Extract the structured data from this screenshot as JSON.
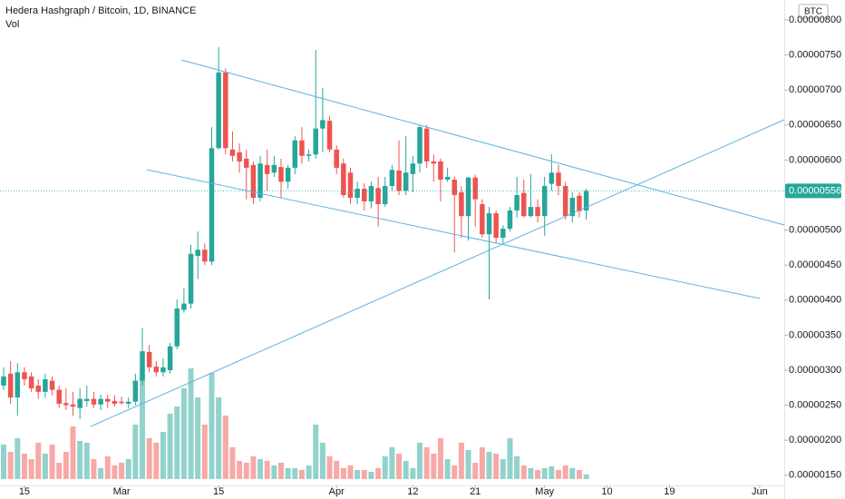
{
  "chart_data": {
    "type": "candlestick",
    "title": "Hedera Hashgraph / Bitcoin, 1D, BINANCE",
    "volume_label": "Vol",
    "currency": "BTC",
    "up_color": "#26a69a",
    "down_color": "#ef5350",
    "x": [
      "Feb 12",
      "Feb 13",
      "Feb 14",
      "Feb 15",
      "Feb 16",
      "Feb 17",
      "Feb 18",
      "Feb 19",
      "Feb 20",
      "Feb 21",
      "Feb 22",
      "Feb 23",
      "Feb 24",
      "Feb 25",
      "Feb 26",
      "Feb 27",
      "Feb 28",
      "Mar 1",
      "Mar 2",
      "Mar 3",
      "Mar 4",
      "Mar 5",
      "Mar 6",
      "Mar 7",
      "Mar 8",
      "Mar 9",
      "Mar 10",
      "Mar 11",
      "Mar 12",
      "Mar 13",
      "Mar 14",
      "Mar 15",
      "Mar 16",
      "Mar 17",
      "Mar 18",
      "Mar 19",
      "Mar 20",
      "Mar 21",
      "Mar 22",
      "Mar 23",
      "Mar 24",
      "Mar 25",
      "Mar 26",
      "Mar 27",
      "Mar 28",
      "Mar 29",
      "Mar 30",
      "Mar 31",
      "Apr 1",
      "Apr 2",
      "Apr 3",
      "Apr 4",
      "Apr 5",
      "Apr 6",
      "Apr 7",
      "Apr 8",
      "Apr 9",
      "Apr 10",
      "Apr 11",
      "Apr 12",
      "Apr 13",
      "Apr 14",
      "Apr 15",
      "Apr 16",
      "Apr 17",
      "Apr 18",
      "Apr 19",
      "Apr 20",
      "Apr 21",
      "Apr 22",
      "Apr 23",
      "Apr 24",
      "Apr 25",
      "Apr 26",
      "Apr 27",
      "Apr 28",
      "Apr 29",
      "Apr 30",
      "May 1",
      "May 2",
      "May 3",
      "May 4",
      "May 5",
      "May 6",
      "May 7"
    ],
    "open": [
      2.78e-06,
      2.95e-06,
      2.61e-06,
      2.97e-06,
      2.91e-06,
      2.78e-06,
      2.69e-06,
      2.85e-06,
      2.72e-06,
      2.53e-06,
      2.51e-06,
      2.46e-06,
      2.56e-06,
      2.59e-06,
      2.51e-06,
      2.59e-06,
      2.56e-06,
      2.55e-06,
      2.52e-06,
      2.55e-06,
      2.85e-06,
      3.26e-06,
      3.05e-06,
      2.97e-06,
      3e-06,
      3.34e-06,
      3.86e-06,
      3.95e-06,
      4.63e-06,
      4.72e-06,
      4.55e-06,
      6.17e-06,
      7.25e-06,
      6.15e-06,
      6.11e-06,
      6.02e-06,
      5.93e-06,
      5.46e-06,
      5.93e-06,
      5.82e-06,
      5.9e-06,
      5.69e-06,
      5.89e-06,
      6.28e-06,
      6.06e-06,
      6.08e-06,
      6.45e-06,
      6.56e-06,
      6.15e-06,
      5.95e-06,
      5.82e-06,
      5.46e-06,
      5.59e-06,
      5.41e-06,
      5.6e-06,
      5.37e-06,
      5.63e-06,
      5.85e-06,
      5.56e-06,
      5.8e-06,
      5.95e-06,
      6.45e-06,
      5.98e-06,
      5.98e-06,
      5.72e-06,
      5.72e-06,
      5.54e-06,
      5.2e-06,
      5.75e-06,
      5.37e-06,
      4.94e-06,
      5.24e-06,
      4.89e-06,
      5.02e-06,
      5.28e-06,
      5.53e-06,
      5.2e-06,
      5.33e-06,
      5.2e-06,
      5.66e-06,
      5.82e-06,
      5.63e-06,
      5.2e-06,
      5.49e-06,
      5.28e-06
    ],
    "high": [
      3.04e-06,
      3.13e-06,
      3.1e-06,
      3.04e-06,
      2.97e-06,
      2.87e-06,
      2.95e-06,
      2.91e-06,
      2.78e-06,
      2.74e-06,
      2.69e-06,
      2.74e-06,
      2.78e-06,
      2.69e-06,
      2.65e-06,
      2.65e-06,
      2.64e-06,
      2.62e-06,
      2.61e-06,
      2.95e-06,
      3.6e-06,
      3.36e-06,
      3.13e-06,
      3.17e-06,
      3.39e-06,
      4.01e-06,
      4.17e-06,
      4.79e-06,
      4.98e-06,
      4.81e-06,
      6.47e-06,
      7.61e-06,
      7.31e-06,
      6.41e-06,
      6.24e-06,
      6.15e-06,
      5.98e-06,
      6.06e-06,
      6.15e-06,
      6.06e-06,
      6.02e-06,
      5.93e-06,
      6.34e-06,
      6.47e-06,
      6.15e-06,
      7.57e-06,
      7.03e-06,
      6.63e-06,
      6.21e-06,
      6.02e-06,
      5.89e-06,
      5.69e-06,
      5.67e-06,
      5.69e-06,
      5.76e-06,
      5.76e-06,
      5.93e-06,
      6.28e-06,
      6.34e-06,
      6.06e-06,
      6.5e-06,
      6.5e-06,
      6.08e-06,
      6.02e-06,
      5.89e-06,
      5.76e-06,
      5.63e-06,
      5.76e-06,
      5.79e-06,
      5.44e-06,
      5.33e-06,
      5.28e-06,
      5.07e-06,
      5.33e-06,
      5.76e-06,
      5.72e-06,
      5.8e-06,
      5.44e-06,
      5.76e-06,
      6.08e-06,
      5.93e-06,
      5.69e-06,
      5.54e-06,
      5.54e-06,
      5.59e-06
    ],
    "low": [
      2.72e-06,
      2.52e-06,
      2.35e-06,
      2.78e-06,
      2.69e-06,
      2.59e-06,
      2.61e-06,
      2.64e-06,
      2.46e-06,
      2.43e-06,
      2.35e-06,
      2.3e-06,
      2.48e-06,
      2.46e-06,
      2.43e-06,
      2.46e-06,
      2.48e-06,
      2.51e-06,
      2.46e-06,
      2.5e-06,
      2.78e-06,
      2.97e-06,
      2.91e-06,
      2.91e-06,
      2.95e-06,
      3.3e-06,
      3.82e-06,
      3.88e-06,
      4.3e-06,
      4.5e-06,
      4.5e-06,
      6.15e-06,
      6.08e-06,
      5.98e-06,
      5.82e-06,
      5.44e-06,
      5.37e-06,
      5.41e-06,
      5.56e-06,
      5.76e-06,
      5.46e-06,
      5.59e-06,
      5.8e-06,
      5.95e-06,
      5.98e-06,
      6.02e-06,
      6.11e-06,
      6.11e-06,
      5.8e-06,
      5.46e-06,
      5.37e-06,
      5.37e-06,
      5.28e-06,
      5.31e-06,
      5.05e-06,
      5.33e-06,
      5.56e-06,
      5.5e-06,
      5.5e-06,
      5.54e-06,
      5.82e-06,
      5.89e-06,
      5.69e-06,
      5.41e-06,
      5.69e-06,
      4.68e-06,
      4.89e-06,
      4.85e-06,
      5.05e-06,
      4.89e-06,
      4.01e-06,
      4.81e-06,
      4.81e-06,
      4.98e-06,
      5.18e-06,
      5.18e-06,
      5.18e-06,
      5.11e-06,
      4.92e-06,
      5.56e-06,
      5.5e-06,
      5.15e-06,
      5.11e-06,
      5.18e-06,
      5.15e-06
    ],
    "close": [
      2.91e-06,
      2.61e-06,
      2.97e-06,
      2.87e-06,
      2.74e-06,
      2.69e-06,
      2.87e-06,
      2.72e-06,
      2.52e-06,
      2.5e-06,
      2.48e-06,
      2.59e-06,
      2.59e-06,
      2.51e-06,
      2.59e-06,
      2.55e-06,
      2.52e-06,
      2.53e-06,
      2.55e-06,
      2.85e-06,
      3.27e-06,
      3.04e-06,
      2.97e-06,
      3.04e-06,
      3.34e-06,
      3.88e-06,
      3.95e-06,
      4.66e-06,
      4.72e-06,
      4.55e-06,
      6.17e-06,
      7.25e-06,
      6.17e-06,
      6.06e-06,
      5.98e-06,
      5.89e-06,
      5.46e-06,
      5.95e-06,
      5.8e-06,
      5.93e-06,
      5.69e-06,
      5.89e-06,
      6.28e-06,
      6.06e-06,
      6.08e-06,
      6.45e-06,
      6.57e-06,
      6.15e-06,
      5.89e-06,
      5.5e-06,
      5.46e-06,
      5.59e-06,
      5.41e-06,
      5.63e-06,
      5.37e-06,
      5.63e-06,
      5.86e-06,
      5.56e-06,
      5.82e-06,
      5.95e-06,
      6.47e-06,
      5.98e-06,
      5.95e-06,
      5.72e-06,
      5.76e-06,
      5.5e-06,
      5.2e-06,
      5.75e-06,
      5.44e-06,
      4.94e-06,
      5.24e-06,
      4.89e-06,
      5.02e-06,
      5.28e-06,
      5.5e-06,
      5.2e-06,
      5.33e-06,
      5.2e-06,
      5.63e-06,
      5.82e-06,
      5.63e-06,
      5.2e-06,
      5.46e-06,
      5.27e-06,
      5.56e-06
    ],
    "volume": [
      38,
      30,
      45,
      28,
      22,
      40,
      28,
      38,
      18,
      30,
      58,
      42,
      40,
      22,
      12,
      25,
      15,
      18,
      22,
      60,
      115,
      45,
      40,
      52,
      72,
      80,
      100,
      122,
      90,
      60,
      117,
      90,
      70,
      35,
      20,
      18,
      25,
      22,
      20,
      15,
      18,
      12,
      12,
      10,
      15,
      60,
      40,
      25,
      20,
      12,
      15,
      10,
      10,
      8,
      12,
      25,
      35,
      28,
      20,
      12,
      40,
      35,
      28,
      45,
      22,
      15,
      40,
      32,
      18,
      35,
      30,
      28,
      22,
      45,
      25,
      15,
      12,
      10,
      12,
      14,
      10,
      15,
      12,
      10,
      5
    ],
    "last_price": {
      "value": 5.56e-06,
      "label": "0.00000556"
    },
    "ylim": [
      1.355e-06,
      8.285e-06
    ],
    "yticks": [
      {
        "value": 8e-06,
        "label": "0.00000800"
      },
      {
        "value": 7.5e-06,
        "label": "0.00000750"
      },
      {
        "value": 7e-06,
        "label": "0.00000700"
      },
      {
        "value": 6.5e-06,
        "label": "0.00000650"
      },
      {
        "value": 6e-06,
        "label": "0.00000600"
      },
      {
        "value": 5e-06,
        "label": "0.00000500"
      },
      {
        "value": 4.5e-06,
        "label": "0.00000450"
      },
      {
        "value": 4e-06,
        "label": "0.00000400"
      },
      {
        "value": 3.5e-06,
        "label": "0.00000350"
      },
      {
        "value": 3e-06,
        "label": "0.00000300"
      },
      {
        "value": 2.5e-06,
        "label": "0.00000250"
      },
      {
        "value": 2e-06,
        "label": "0.00000200"
      },
      {
        "value": 1.5e-06,
        "label": "0.00000150"
      }
    ],
    "xticks": [
      {
        "value": "Feb 15",
        "label": "15"
      },
      {
        "value": "Mar 1",
        "label": "Mar"
      },
      {
        "value": "Mar 15",
        "label": "15"
      },
      {
        "value": "Apr 1",
        "label": "Apr"
      },
      {
        "value": "Apr 12",
        "label": "12"
      },
      {
        "value": "Apr 21",
        "label": "21"
      },
      {
        "value": "May 1",
        "label": "May"
      },
      {
        "value": "May 10",
        "label": "10"
      },
      {
        "value": "May 19",
        "label": "19"
      },
      {
        "value": "Jun 1",
        "label": "Jun"
      }
    ],
    "grid": false
  }
}
